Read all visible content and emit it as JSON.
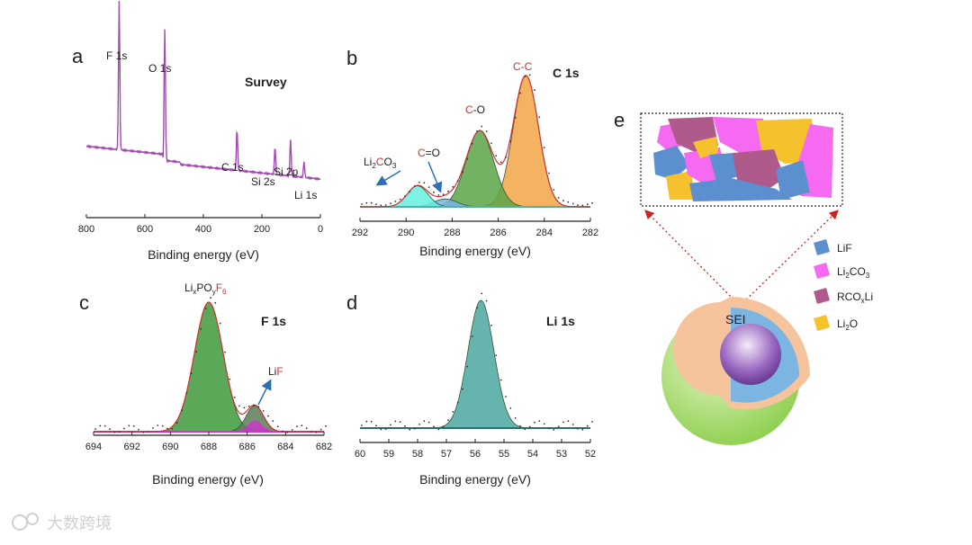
{
  "watermark": "大数跨境",
  "colors": {
    "survey": "#a24bb0",
    "fit": "#cc3333",
    "cc": "#f3a545",
    "co": "#5ca548",
    "li2co3": "#66eedd",
    "cdo": "#7cb4e2",
    "f1s": "#3e9a3b",
    "lif_peak": "#cc33cc",
    "lif_dark": "#5d7c58",
    "li1s": "#4aa8a0",
    "arrow": "#2a6fb5",
    "lif": "#5b8fd0",
    "li2co3_sei": "#f56af0",
    "rcoxli": "#b05a8c",
    "li2o": "#f5c12c"
  },
  "chart_data": [
    {
      "id": "a",
      "type": "line",
      "panel_label": "a",
      "title": "Survey",
      "xlabel": "Binding energy (eV)",
      "ylabel": "",
      "xlim": [
        800,
        0
      ],
      "xticks": [
        800,
        600,
        400,
        200,
        0
      ],
      "xreversed": true,
      "series": [
        {
          "name": "Survey spectrum",
          "peaks": [
            {
              "label": "F 1s",
              "x": 688
            },
            {
              "label": "O 1s",
              "x": 532
            },
            {
              "label": "C 1s",
              "x": 285
            },
            {
              "label": "Si 2s",
              "x": 155
            },
            {
              "label": "Si 2p",
              "x": 102
            },
            {
              "label": "Li 1s",
              "x": 56
            }
          ]
        }
      ],
      "annotations": [
        "F 1s",
        "O 1s",
        "C 1s",
        "Si 2s",
        "Si 2p",
        "Li 1s"
      ]
    },
    {
      "id": "b",
      "type": "area",
      "panel_label": "b",
      "title": "C 1s",
      "xlabel": "Binding energy (eV)",
      "xlim": [
        292,
        282
      ],
      "xticks": [
        292,
        290,
        288,
        286,
        284,
        282
      ],
      "xreversed": true,
      "series": [
        {
          "name": "C-C",
          "center": 284.8,
          "height": 1.0,
          "color_key": "cc"
        },
        {
          "name": "C-O",
          "center": 286.8,
          "height": 0.58,
          "color_key": "co"
        },
        {
          "name": "C=O",
          "center": 288.3,
          "height": 0.06,
          "color_key": "cdo"
        },
        {
          "name": "Li2CO3",
          "center": 289.5,
          "height": 0.16,
          "color_key": "li2co3"
        }
      ],
      "annotations": {
        "cc_a": "C",
        "cc_b": "-",
        "cc_c": "C",
        "co_a": "C",
        "co_b": "-O",
        "cdo_a": "C",
        "cdo_b": "=O",
        "li2co3_a": "Li",
        "li2co3_b": "2",
        "li2co3_c": "C",
        "li2co3_d": "O",
        "li2co3_e": "3"
      }
    },
    {
      "id": "c",
      "type": "area",
      "panel_label": "c",
      "title": "F 1s",
      "xlabel": "Binding energy (eV)",
      "xlim": [
        694,
        682
      ],
      "xticks": [
        694,
        692,
        690,
        688,
        686,
        684,
        682
      ],
      "xreversed": true,
      "series": [
        {
          "name": "LixPOyF6",
          "center": 688.0,
          "height": 1.0,
          "color_key": "f1s"
        },
        {
          "name": "LiF",
          "center": 685.6,
          "height": 0.2,
          "color_key": "lif_dark"
        }
      ],
      "annotations": {
        "p_a": "Li",
        "p_b": "x",
        "p_c": "PO",
        "p_d": "y",
        "p_e": "F",
        "p_f": "6",
        "lif_a": "Li",
        "lif_b": "F"
      }
    },
    {
      "id": "d",
      "type": "area",
      "panel_label": "d",
      "title": "Li 1s",
      "xlabel": "Binding energy (eV)",
      "xlim": [
        60,
        52
      ],
      "xticks": [
        60,
        59,
        58,
        57,
        56,
        55,
        54,
        53,
        52
      ],
      "xreversed": true,
      "series": [
        {
          "name": "Li 1s",
          "center": 55.8,
          "height": 1.0,
          "color_key": "li1s"
        }
      ]
    }
  ],
  "diagram": {
    "panel_label": "e",
    "core_label": "SEI",
    "legend": [
      {
        "key": "lif",
        "a": "LiF",
        "b": "",
        "c": ""
      },
      {
        "key": "li2co3_sei",
        "a": "Li",
        "b": "2",
        "c": "CO"
      },
      {
        "key": "rcoxli",
        "a": "RCO",
        "b": "x",
        "c": "Li"
      },
      {
        "key": "li2o",
        "a": "Li",
        "b": "2",
        "c": "O"
      }
    ],
    "legend_sub3": "3"
  }
}
